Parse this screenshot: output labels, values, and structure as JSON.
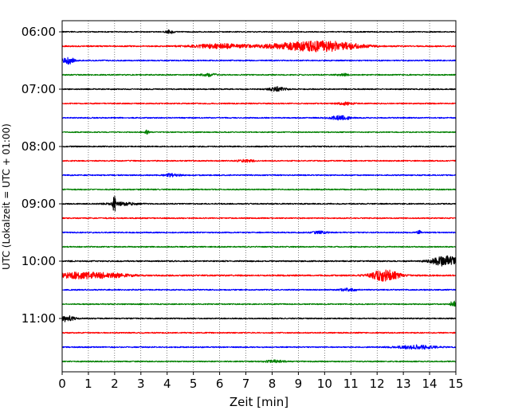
{
  "chart_data": {
    "type": "line",
    "title": "",
    "xlabel": "Zeit  [min]",
    "ylabel": "UTC (Lokalzeit = UTC + 01:00)",
    "xlim": [
      0,
      15
    ],
    "x_ticks": [
      "0",
      "1",
      "2",
      "3",
      "4",
      "5",
      "6",
      "7",
      "8",
      "9",
      "10",
      "11",
      "12",
      "13",
      "14",
      "15"
    ],
    "y_tick_labels": [
      "06:00",
      "07:00",
      "08:00",
      "09:00",
      "10:00",
      "11:00"
    ],
    "grid_x": true,
    "trace_interval_min": 15,
    "colors": [
      "#000000",
      "#ff0000",
      "#0000ff",
      "#008000"
    ],
    "traces": [
      {
        "start": "06:00",
        "color": "#000000",
        "noise": 0.7,
        "events": [
          {
            "t": 4.1,
            "amp": 2.5,
            "dur": 0.15
          }
        ]
      },
      {
        "start": "06:15",
        "color": "#ff0000",
        "noise": 0.9,
        "events": [
          {
            "t": 6.0,
            "amp": 3.0,
            "dur": 1.0
          },
          {
            "t": 10.0,
            "amp": 6.5,
            "dur": 1.3
          },
          {
            "t": 8.5,
            "amp": 2.5,
            "dur": 1.2
          }
        ]
      },
      {
        "start": "06:30",
        "color": "#0000ff",
        "noise": 0.8,
        "events": [
          {
            "t": 0.25,
            "amp": 5.0,
            "dur": 0.2
          }
        ]
      },
      {
        "start": "06:45",
        "color": "#008000",
        "noise": 0.8,
        "events": [
          {
            "t": 5.6,
            "amp": 1.8,
            "dur": 0.3
          },
          {
            "t": 10.7,
            "amp": 1.8,
            "dur": 0.2
          }
        ]
      },
      {
        "start": "07:00",
        "color": "#000000",
        "noise": 0.8,
        "events": [
          {
            "t": 8.2,
            "amp": 3.0,
            "dur": 0.3
          }
        ]
      },
      {
        "start": "07:15",
        "color": "#ff0000",
        "noise": 0.8,
        "events": [
          {
            "t": 10.8,
            "amp": 1.8,
            "dur": 0.3
          }
        ]
      },
      {
        "start": "07:30",
        "color": "#0000ff",
        "noise": 0.8,
        "events": [
          {
            "t": 10.6,
            "amp": 2.8,
            "dur": 0.4
          }
        ]
      },
      {
        "start": "07:45",
        "color": "#008000",
        "noise": 0.7,
        "events": [
          {
            "t": 3.25,
            "amp": 3.0,
            "dur": 0.08
          }
        ]
      },
      {
        "start": "08:00",
        "color": "#000000",
        "noise": 0.8,
        "events": []
      },
      {
        "start": "08:15",
        "color": "#ff0000",
        "noise": 0.8,
        "events": [
          {
            "t": 7.0,
            "amp": 1.5,
            "dur": 0.3
          }
        ]
      },
      {
        "start": "08:30",
        "color": "#0000ff",
        "noise": 0.8,
        "events": [
          {
            "t": 4.2,
            "amp": 2.0,
            "dur": 0.3
          }
        ]
      },
      {
        "start": "08:45",
        "color": "#008000",
        "noise": 0.8,
        "events": []
      },
      {
        "start": "09:00",
        "color": "#000000",
        "noise": 0.8,
        "events": [
          {
            "t": 1.98,
            "amp": 11.0,
            "dur": 0.06
          },
          {
            "t": 2.3,
            "amp": 1.8,
            "dur": 0.6
          }
        ]
      },
      {
        "start": "09:15",
        "color": "#ff0000",
        "noise": 0.8,
        "events": []
      },
      {
        "start": "09:30",
        "color": "#0000ff",
        "noise": 0.8,
        "events": [
          {
            "t": 9.8,
            "amp": 1.5,
            "dur": 0.3
          },
          {
            "t": 13.6,
            "amp": 2.5,
            "dur": 0.08
          }
        ]
      },
      {
        "start": "09:45",
        "color": "#008000",
        "noise": 0.8,
        "events": []
      },
      {
        "start": "10:00",
        "color": "#000000",
        "noise": 0.9,
        "events": [
          {
            "t": 14.6,
            "amp": 7.0,
            "dur": 0.5
          }
        ]
      },
      {
        "start": "10:15",
        "color": "#ff0000",
        "noise": 1.0,
        "events": [
          {
            "t": 0.7,
            "amp": 4.0,
            "dur": 1.0
          },
          {
            "t": 2.0,
            "amp": 2.0,
            "dur": 0.7
          },
          {
            "t": 12.3,
            "amp": 8.0,
            "dur": 0.5
          }
        ]
      },
      {
        "start": "10:30",
        "color": "#0000ff",
        "noise": 0.8,
        "events": [
          {
            "t": 10.9,
            "amp": 1.8,
            "dur": 0.3
          }
        ]
      },
      {
        "start": "10:45",
        "color": "#008000",
        "noise": 0.8,
        "events": [
          {
            "t": 14.9,
            "amp": 5.0,
            "dur": 0.1
          }
        ]
      },
      {
        "start": "11:00",
        "color": "#000000",
        "noise": 0.8,
        "events": [
          {
            "t": 0.15,
            "amp": 4.0,
            "dur": 0.3
          }
        ]
      },
      {
        "start": "11:15",
        "color": "#ff0000",
        "noise": 0.8,
        "events": []
      },
      {
        "start": "11:30",
        "color": "#0000ff",
        "noise": 0.8,
        "events": [
          {
            "t": 13.5,
            "amp": 2.5,
            "dur": 0.7
          }
        ]
      },
      {
        "start": "11:45",
        "color": "#008000",
        "noise": 0.8,
        "events": [
          {
            "t": 8.1,
            "amp": 1.5,
            "dur": 0.4
          }
        ]
      }
    ]
  }
}
